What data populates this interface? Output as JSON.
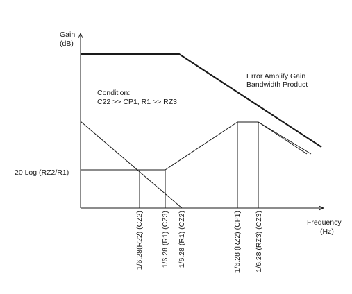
{
  "diagram": {
    "y_axis_label_line1": "Gain",
    "y_axis_label_line2": "(dB)",
    "x_axis_label_line1": "Frequency",
    "x_axis_label_line2": "(Hz)",
    "annotation_line1": "Error Amplify Gain",
    "annotation_line2": "Bandwidth Product",
    "condition_line1": "Condition:",
    "condition_line2": "C22 >> CP1, R1 >> RZ3",
    "gain_level_label": "20 Log (RZ2/R1)",
    "x_marker_labels": [
      "1/6.28(R22) (CZ2)",
      "1/6.28 (R1) (CZ3)",
      "1/6.28 (R1) (CZ2)",
      "1/6.28 (RZ2) (CP1)",
      "1/6.28 (RZ3) (CZ3)"
    ]
  }
}
